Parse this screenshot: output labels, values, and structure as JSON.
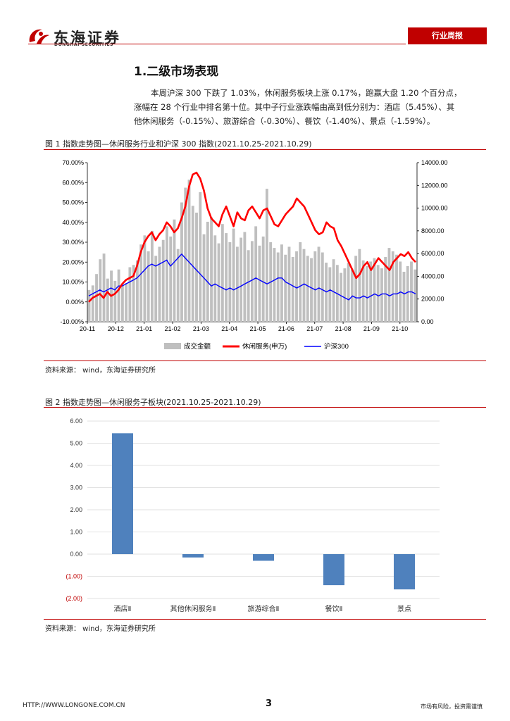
{
  "header": {
    "brand": "东海证券",
    "brand_en": "DONGHAI SECURITIES",
    "badge": "行业周报"
  },
  "section": {
    "title": "1.二级市场表现",
    "para_line1": "本周沪深 300 下跌了 1.03%，休闲服务板块上涨 0.17%，跑赢大盘 1.20 个百分点，",
    "para_line2": "涨幅在 28 个行业中排名第十位。其中子行业涨跌幅由高到低分别为：酒店（5.45%）、其",
    "para_line3": "他休闲服务（-0.15%）、旅游综合（-0.30%）、餐饮（-1.40%）、景点（-1.59%）。"
  },
  "figure1": {
    "title": "图 1    指数走势图—休闲服务行业和沪深 300 指数(2021.10.25-2021.10.29)",
    "source": "资料来源：  wind，东海证券研究所"
  },
  "figure2": {
    "title": "图 2    指数走势图—休闲服务子板块(2021.10.25-2021.10.29)",
    "source": "资料来源：  wind，东海证券研究所"
  },
  "footer": {
    "url": "HTTP://WWW.LONGONE.COM.CN",
    "page": "3",
    "risk": "市场有风险，投资需谨慎"
  },
  "chart_data": [
    {
      "type": "line",
      "title": "指数走势图—休闲服务行业和沪深 300 指数",
      "x_ticks": [
        "20-11",
        "20-12",
        "21-01",
        "21-02",
        "21-03",
        "21-04",
        "21-05",
        "21-06",
        "21-07",
        "21-08",
        "21-09",
        "21-10"
      ],
      "y_left_ticks": [
        "70.00%",
        "60.00%",
        "50.00%",
        "40.00%",
        "30.00%",
        "20.00%",
        "10.00%",
        "0.00%",
        "-10.00%"
      ],
      "y_right_ticks": [
        "14000.00",
        "12000.00",
        "10000.00",
        "8000.00",
        "6000.00",
        "4000.00",
        "2000.00",
        "0.00"
      ],
      "ylim_left": [
        -10,
        70
      ],
      "ylim_right": [
        0,
        14000
      ],
      "legend": [
        "成交金额",
        "休闲服务(申万)",
        "沪深300"
      ],
      "colors": {
        "volume": "#bfbfbf",
        "leisure": "#ff0000",
        "csi300": "#0000ff"
      },
      "leisure_pct": [
        0,
        2,
        3,
        4,
        2,
        5,
        3,
        4,
        6,
        9,
        11,
        12,
        13,
        18,
        25,
        30,
        33,
        35,
        31,
        34,
        36,
        40,
        38,
        35,
        37,
        42,
        48,
        58,
        64,
        65,
        62,
        56,
        47,
        42,
        40,
        38,
        44,
        48,
        43,
        38,
        45,
        42,
        41,
        46,
        48,
        45,
        42,
        46,
        47,
        43,
        39,
        38,
        41,
        44,
        46,
        48,
        52,
        50,
        48,
        44,
        40,
        36,
        34,
        35,
        40,
        38,
        37,
        31,
        28,
        24,
        20,
        16,
        12,
        14,
        18,
        20,
        16,
        19,
        22,
        20,
        18,
        16,
        20,
        22,
        24,
        23,
        25,
        22,
        20
      ],
      "csi300_pct": [
        3,
        4,
        5,
        6,
        5,
        6,
        7,
        6,
        8,
        8,
        9,
        10,
        11,
        12,
        14,
        16,
        18,
        19,
        18,
        19,
        20,
        21,
        18,
        20,
        22,
        24,
        22,
        20,
        18,
        16,
        14,
        12,
        10,
        8,
        9,
        8,
        7,
        6,
        7,
        6,
        7,
        8,
        9,
        10,
        11,
        12,
        11,
        10,
        9,
        10,
        11,
        12,
        12,
        10,
        9,
        8,
        7,
        8,
        9,
        8,
        7,
        6,
        7,
        6,
        5,
        6,
        5,
        4,
        3,
        2,
        1,
        3,
        2,
        2,
        3,
        2,
        3,
        4,
        3,
        4,
        4,
        3,
        4,
        4,
        5,
        4,
        5,
        5,
        4
      ],
      "volume": [
        2800,
        3200,
        4200,
        5500,
        6000,
        3800,
        4500,
        3600,
        4600,
        3300,
        3400,
        4800,
        5000,
        5400,
        6800,
        7600,
        6200,
        8000,
        5800,
        6600,
        7200,
        8400,
        7500,
        9000,
        6400,
        10500,
        11800,
        12500,
        10200,
        9600,
        11400,
        7700,
        8800,
        9200,
        7600,
        6900,
        8600,
        7800,
        7000,
        8200,
        6600,
        7400,
        7900,
        6300,
        7100,
        8400,
        6700,
        7500,
        11700,
        7000,
        6500,
        6100,
        6800,
        5900,
        6600,
        5700,
        6200,
        7000,
        6400,
        5800,
        5600,
        6200,
        6600,
        6100,
        5200,
        4800,
        5500,
        5000,
        4300,
        4700,
        5200,
        4600,
        5800,
        6400,
        5400,
        4900,
        5300,
        5600,
        5000,
        4700,
        5700,
        6500,
        6200,
        5900,
        5300,
        4400,
        4900,
        5300,
        4600
      ]
    },
    {
      "type": "bar",
      "title": "指数走势图—休闲服务子板块",
      "categories": [
        "酒店Ⅱ",
        "其他休闲服务Ⅱ",
        "旅游综合Ⅱ",
        "餐饮Ⅱ",
        "景点"
      ],
      "values": [
        5.45,
        -0.15,
        -0.3,
        -1.4,
        -1.59
      ],
      "y_ticks": [
        "6.00",
        "5.00",
        "4.00",
        "3.00",
        "2.00",
        "1.00",
        "0.00",
        "(1.00)",
        "(2.00)"
      ],
      "ylim": [
        -2,
        6
      ],
      "bar_color": "#4f81bd",
      "negative_tick_color": "#c00000"
    }
  ]
}
